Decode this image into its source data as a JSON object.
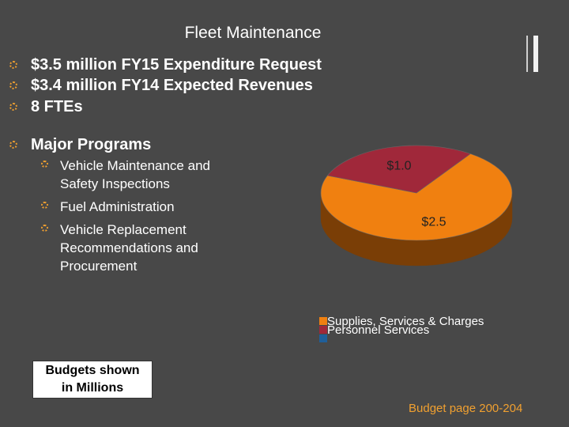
{
  "slide": {
    "title": "Fleet Maintenance",
    "summary": [
      "$3.5 million FY15 Expenditure Request",
      "$3.4 million FY14 Expected Revenues",
      "8 FTEs"
    ],
    "programs_heading": "Major Programs",
    "programs": [
      "Vehicle Maintenance and Safety Inspections",
      "Fuel Administration",
      "Vehicle Replacement Recommendations and Procurement"
    ],
    "note_lines": [
      "Budgets shown",
      "in Millions"
    ],
    "page_reference": "Budget page 200-204"
  },
  "colors": {
    "background": "#484848",
    "accent": "#f0a030",
    "supplies": "#f08010",
    "supplies_side": "#7a3e06",
    "personnel": "#a0283a",
    "personnel_side": "#5e1822",
    "third": "#1f5f9a"
  },
  "chart_data": {
    "type": "pie",
    "title": "",
    "slices": [
      {
        "name": "Supplies, Services & Charges",
        "value": 2.5,
        "label": "$2.5",
        "color": "#f08010",
        "side_color": "#7a3e06"
      },
      {
        "name": "Personnel Services",
        "value": 1.0,
        "label": "$1.0",
        "color": "#a0283a",
        "side_color": "#5e1822"
      }
    ],
    "legend": [
      {
        "name": "Supplies, Services & Charges",
        "color": "#f08010"
      },
      {
        "name": "Personnel Services",
        "color": "#a0283a"
      },
      {
        "name": "",
        "color": "#1f5f9a"
      }
    ],
    "legend_position": "bottom-right",
    "style": "3d"
  }
}
